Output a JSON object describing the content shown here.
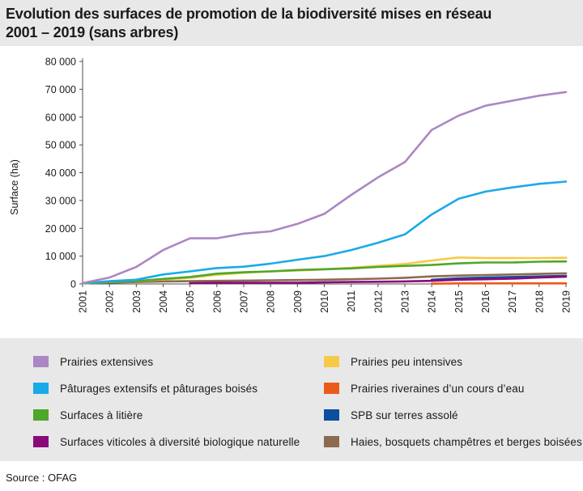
{
  "title_line1": "Evolution des surfaces de promotion de la biodiversité mises en réseau",
  "title_line2": "2001 – 2019 (sans arbres)",
  "source": "Source : OFAG",
  "chart_data": {
    "type": "line",
    "title": "Evolution des surfaces de promotion de la biodiversité mises en réseau 2001 – 2019 (sans arbres)",
    "xlabel": "",
    "ylabel": "Surface (ha)",
    "ylim": [
      0,
      80000
    ],
    "grid": false,
    "x": [
      2001,
      2002,
      2003,
      2004,
      2005,
      2006,
      2007,
      2008,
      2009,
      2010,
      2011,
      2012,
      2013,
      2014,
      2015,
      2016,
      2017,
      2018,
      2019
    ],
    "y_ticks": [
      0,
      10000,
      20000,
      30000,
      40000,
      50000,
      60000,
      70000,
      80000
    ],
    "y_tick_labels": [
      "0",
      "10 000",
      "20 000",
      "30 000",
      "40 000",
      "50 000",
      "60 000",
      "70 000",
      "80 000"
    ],
    "x_tick_labels": [
      "2001",
      "2002",
      "2003",
      "2004",
      "2005",
      "2006",
      "2007",
      "2008",
      "2009",
      "2010",
      "2011",
      "2012",
      "2013",
      "2014",
      "2015",
      "2016",
      "2017",
      "2018",
      "2019"
    ],
    "series": [
      {
        "name": "Haies, bosquets champêtres et berges boisées",
        "color": "#8c6a4f",
        "values": [
          300,
          500,
          700,
          900,
          1000,
          1100,
          1200,
          1300,
          1400,
          1500,
          1700,
          1900,
          2200,
          2700,
          3000,
          3200,
          3400,
          3600,
          3800
        ]
      },
      {
        "name": "SPB sur terres assolé",
        "color": "#0d4f9e",
        "values": [
          null,
          null,
          null,
          null,
          null,
          null,
          null,
          null,
          null,
          null,
          null,
          null,
          null,
          1500,
          2000,
          2300,
          2500,
          2700,
          2900
        ]
      },
      {
        "name": "Surfaces viticoles à diversité biologique naturelle",
        "color": "#8b0a7a",
        "values": [
          null,
          null,
          null,
          null,
          300,
          400,
          400,
          400,
          400,
          600,
          700,
          800,
          900,
          1100,
          1500,
          1700,
          1900,
          2300,
          2600
        ]
      },
      {
        "name": "Prairies riveraines d’un cours d’eau",
        "color": "#ec5a1a",
        "values": [
          null,
          null,
          null,
          null,
          null,
          null,
          null,
          null,
          null,
          null,
          null,
          null,
          null,
          100,
          200,
          200,
          200,
          200,
          200
        ]
      },
      {
        "name": "Prairies peu intensives",
        "color": "#f7c948",
        "values": [
          200,
          700,
          1000,
          1600,
          2200,
          3300,
          4000,
          4500,
          4800,
          5200,
          5800,
          6500,
          7200,
          8400,
          9500,
          9300,
          9300,
          9300,
          9400
        ]
      },
      {
        "name": "Surfaces à litière",
        "color": "#4ea72a",
        "values": [
          200,
          700,
          1000,
          1800,
          2500,
          3700,
          4200,
          4500,
          5000,
          5300,
          5600,
          6100,
          6500,
          6800,
          7400,
          7700,
          7700,
          8000,
          8100
        ]
      },
      {
        "name": "Pâturages extensifs et pâturages boisés",
        "color": "#1aaae8",
        "values": [
          300,
          1000,
          1500,
          3400,
          4500,
          5700,
          6200,
          7300,
          8700,
          10000,
          12200,
          14800,
          17800,
          25000,
          30600,
          33200,
          34700,
          36000,
          36800
        ]
      },
      {
        "name": "Prairies extensives",
        "color": "#ab87c3",
        "values": [
          300,
          2300,
          6100,
          12200,
          16400,
          16400,
          18100,
          18900,
          21600,
          25200,
          32000,
          38300,
          43800,
          55400,
          60500,
          64100,
          65900,
          67700,
          69000
        ]
      }
    ]
  },
  "legend": {
    "left": [
      {
        "label": "Prairies extensives",
        "color": "#ab87c3"
      },
      {
        "label": "Pâturages extensifs et pâturages boisés",
        "color": "#1aaae8"
      },
      {
        "label": "Surfaces à litière",
        "color": "#4ea72a"
      },
      {
        "label": "Surfaces viticoles à diversité biologique naturelle",
        "color": "#8b0a7a"
      }
    ],
    "right": [
      {
        "label": "Prairies peu intensives",
        "color": "#f7c948"
      },
      {
        "label": "Prairies riveraines d’un cours d’eau",
        "color": "#ec5a1a"
      },
      {
        "label": "SPB sur terres assolé",
        "color": "#0d4f9e"
      },
      {
        "label": "Haies, bosquets champêtres et berges boisées",
        "color": "#8c6a4f"
      }
    ]
  }
}
